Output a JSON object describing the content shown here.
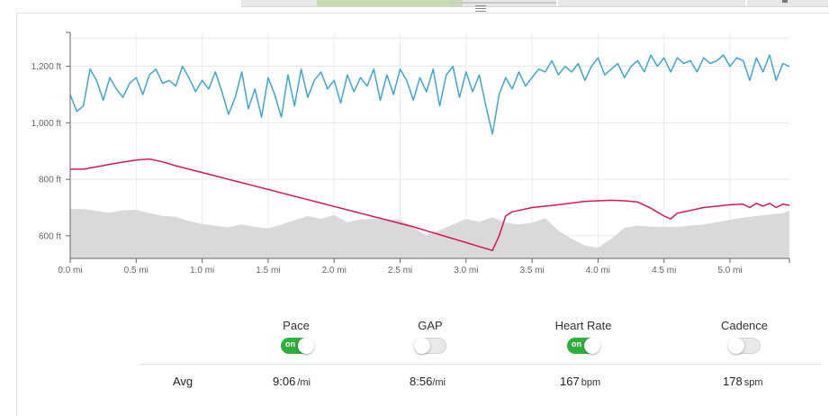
{
  "chart": {
    "y_axis": {
      "ticks": [
        "1,200 ft",
        "1,000 ft",
        "800 ft",
        "600 ft"
      ]
    },
    "x_axis": {
      "ticks": [
        "0.0 mi",
        "0.5 mi",
        "1.0 mi",
        "1.5 mi",
        "2.0 mi",
        "2.5 mi",
        "3.0 mi",
        "3.5 mi",
        "4.0 mi",
        "4.5 mi",
        "5.0 mi"
      ]
    }
  },
  "chart_data": {
    "type": "line",
    "x_unit": "mi",
    "y_unit": "ft",
    "xlim": [
      0,
      5.45
    ],
    "ylim": [
      520,
      1320
    ],
    "grid": true,
    "series": [
      {
        "color": "#3ea6d6",
        "style": "line",
        "x": [
          0.0,
          0.05,
          0.1,
          0.15,
          0.2,
          0.25,
          0.3,
          0.35,
          0.4,
          0.45,
          0.5,
          0.55,
          0.6,
          0.65,
          0.7,
          0.75,
          0.8,
          0.85,
          0.9,
          0.95,
          1.0,
          1.05,
          1.1,
          1.15,
          1.2,
          1.25,
          1.3,
          1.35,
          1.4,
          1.45,
          1.5,
          1.55,
          1.6,
          1.65,
          1.7,
          1.75,
          1.8,
          1.85,
          1.9,
          1.95,
          2.0,
          2.05,
          2.1,
          2.15,
          2.2,
          2.25,
          2.3,
          2.35,
          2.4,
          2.45,
          2.5,
          2.55,
          2.6,
          2.65,
          2.7,
          2.75,
          2.8,
          2.85,
          2.9,
          2.95,
          3.0,
          3.05,
          3.1,
          3.15,
          3.2,
          3.25,
          3.3,
          3.35,
          3.4,
          3.45,
          3.5,
          3.55,
          3.6,
          3.65,
          3.7,
          3.75,
          3.8,
          3.85,
          3.9,
          3.95,
          4.0,
          4.05,
          4.1,
          4.15,
          4.2,
          4.25,
          4.3,
          4.35,
          4.4,
          4.45,
          4.5,
          4.55,
          4.6,
          4.65,
          4.7,
          4.75,
          4.8,
          4.85,
          4.9,
          4.95,
          5.0,
          5.05,
          5.1,
          5.15,
          5.2,
          5.25,
          5.3,
          5.35,
          5.4,
          5.45
        ],
        "y": [
          1100,
          1040,
          1060,
          1190,
          1150,
          1080,
          1160,
          1120,
          1090,
          1140,
          1160,
          1100,
          1170,
          1190,
          1140,
          1150,
          1130,
          1200,
          1160,
          1110,
          1150,
          1120,
          1180,
          1110,
          1030,
          1090,
          1180,
          1050,
          1120,
          1020,
          1160,
          1100,
          1020,
          1170,
          1060,
          1190,
          1090,
          1150,
          1180,
          1120,
          1150,
          1070,
          1170,
          1110,
          1160,
          1130,
          1190,
          1080,
          1170,
          1100,
          1190,
          1150,
          1080,
          1160,
          1110,
          1190,
          1060,
          1170,
          1200,
          1090,
          1180,
          1110,
          1170,
          1060,
          960,
          1100,
          1160,
          1120,
          1180,
          1130,
          1160,
          1190,
          1180,
          1220,
          1170,
          1200,
          1180,
          1210,
          1150,
          1200,
          1230,
          1170,
          1190,
          1210,
          1160,
          1200,
          1220,
          1180,
          1240,
          1200,
          1230,
          1180,
          1230,
          1210,
          1220,
          1180,
          1230,
          1210,
          1220,
          1240,
          1200,
          1230,
          1220,
          1150,
          1230,
          1180,
          1240,
          1150,
          1210,
          1200
        ]
      },
      {
        "color": "#d8174f",
        "style": "line",
        "x": [
          0.0,
          0.1,
          0.2,
          0.3,
          0.4,
          0.5,
          0.6,
          0.7,
          0.8,
          0.9,
          1.0,
          1.1,
          1.2,
          1.3,
          1.4,
          1.5,
          1.6,
          1.7,
          1.8,
          1.9,
          2.0,
          2.1,
          2.2,
          2.3,
          2.4,
          2.5,
          2.6,
          2.7,
          2.8,
          2.9,
          3.0,
          3.1,
          3.2,
          3.25,
          3.3,
          3.35,
          3.4,
          3.5,
          3.6,
          3.7,
          3.8,
          3.9,
          4.0,
          4.1,
          4.2,
          4.25,
          4.3,
          4.4,
          4.5,
          4.55,
          4.6,
          4.7,
          4.8,
          4.9,
          5.0,
          5.1,
          5.15,
          5.2,
          5.25,
          5.3,
          5.35,
          5.4,
          5.45
        ],
        "y": [
          836,
          836,
          844,
          853,
          861,
          868,
          872,
          862,
          848,
          836,
          824,
          812,
          800,
          788,
          776,
          764,
          752,
          740,
          728,
          716,
          704,
          692,
          680,
          668,
          656,
          644,
          632,
          618,
          604,
          590,
          576,
          562,
          548,
          600,
          670,
          685,
          690,
          700,
          705,
          710,
          716,
          722,
          724,
          726,
          724,
          722,
          720,
          698,
          670,
          660,
          680,
          690,
          700,
          705,
          710,
          712,
          700,
          715,
          705,
          715,
          700,
          712,
          708
        ]
      },
      {
        "color": "#d9d9d9",
        "style": "area",
        "x": [
          0.0,
          0.1,
          0.2,
          0.3,
          0.4,
          0.5,
          0.6,
          0.7,
          0.8,
          0.9,
          1.0,
          1.1,
          1.2,
          1.3,
          1.4,
          1.5,
          1.6,
          1.7,
          1.8,
          1.9,
          2.0,
          2.1,
          2.2,
          2.3,
          2.4,
          2.5,
          2.6,
          2.7,
          2.8,
          2.9,
          3.0,
          3.1,
          3.2,
          3.3,
          3.4,
          3.5,
          3.6,
          3.7,
          3.8,
          3.9,
          4.0,
          4.1,
          4.2,
          4.3,
          4.4,
          4.5,
          4.6,
          4.7,
          4.8,
          4.9,
          5.0,
          5.1,
          5.2,
          5.3,
          5.4,
          5.45
        ],
        "y": [
          695,
          695,
          688,
          682,
          690,
          692,
          680,
          670,
          668,
          652,
          642,
          636,
          630,
          640,
          632,
          626,
          640,
          655,
          670,
          660,
          674,
          648,
          658,
          660,
          658,
          658,
          628,
          602,
          620,
          640,
          660,
          650,
          666,
          646,
          640,
          646,
          662,
          618,
          590,
          566,
          558,
          590,
          628,
          636,
          632,
          632,
          632,
          636,
          640,
          648,
          656,
          664,
          670,
          676,
          680,
          690
        ]
      }
    ]
  },
  "metrics": [
    {
      "label": "Pace",
      "toggle": "on",
      "toggle_text": "on",
      "avg_value": "9:06",
      "avg_unit": "/mi"
    },
    {
      "label": "GAP",
      "toggle": "off",
      "toggle_text": "",
      "avg_value": "8:56",
      "avg_unit": "/mi"
    },
    {
      "label": "Heart Rate",
      "toggle": "on",
      "toggle_text": "on",
      "avg_value": "167",
      "avg_unit": "bpm"
    },
    {
      "label": "Cadence",
      "toggle": "off",
      "toggle_text": "",
      "avg_value": "178",
      "avg_unit": "spm"
    }
  ],
  "avg_label": "Avg"
}
